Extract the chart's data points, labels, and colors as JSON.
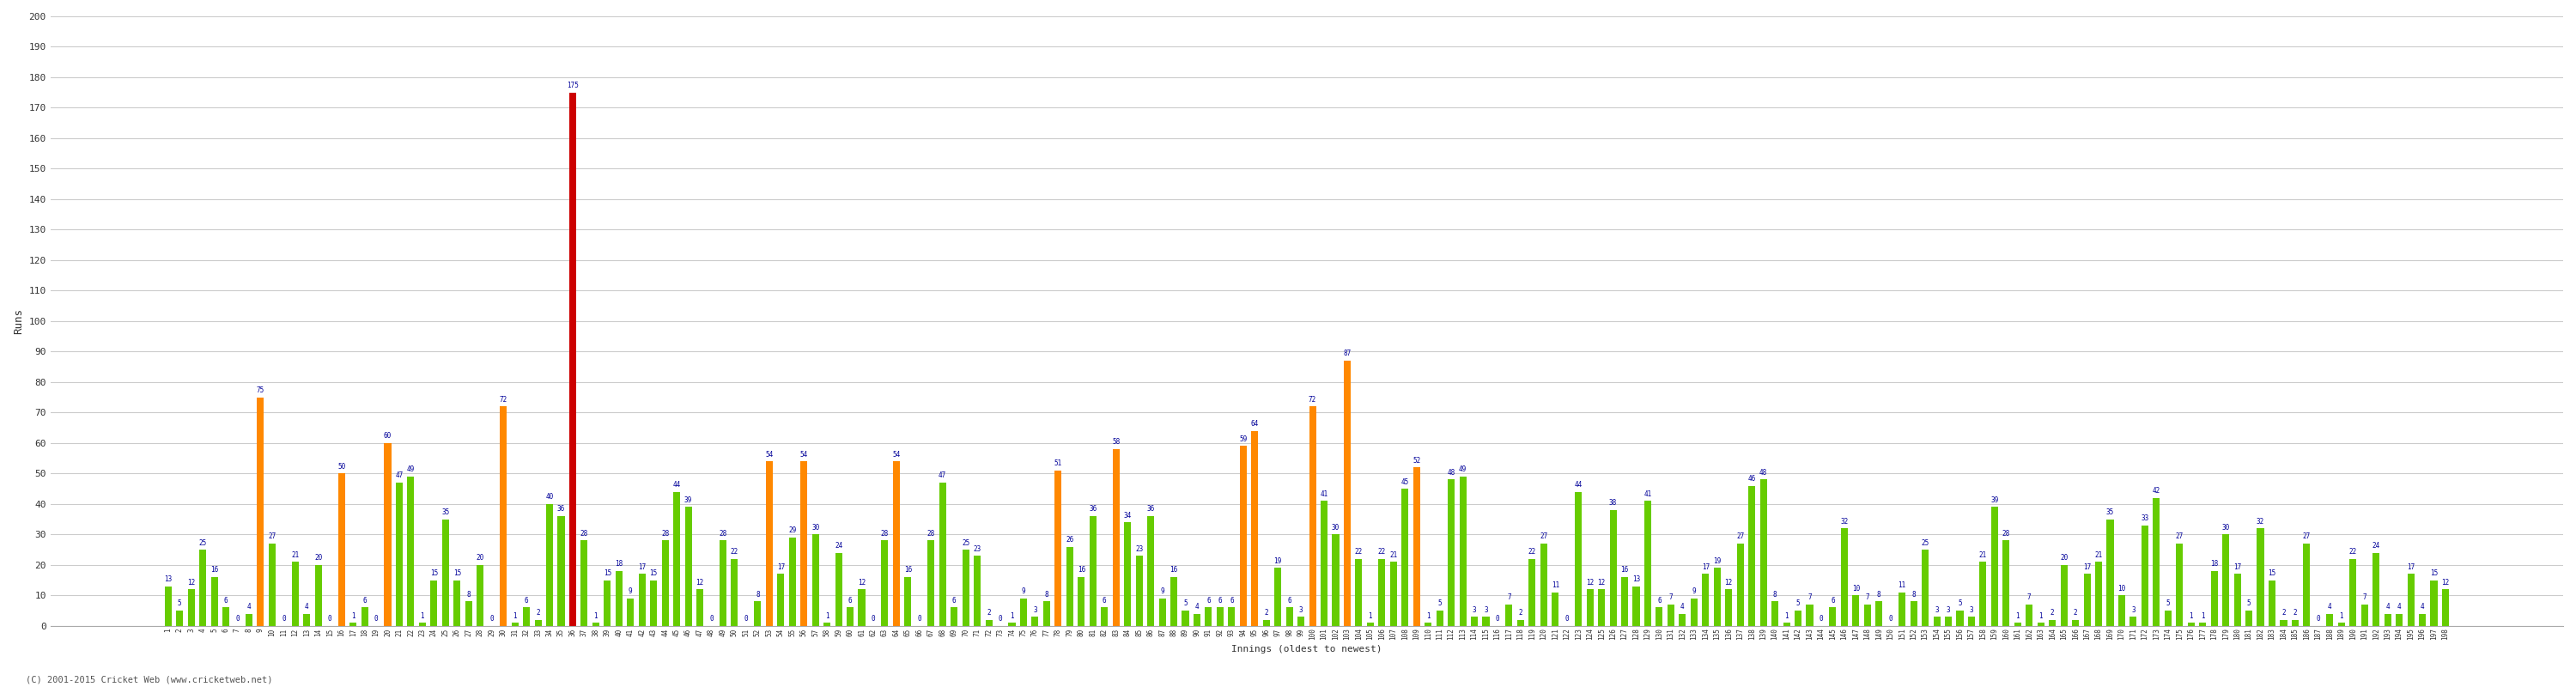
{
  "innings": [
    1,
    2,
    3,
    4,
    5,
    6,
    7,
    8,
    9,
    10,
    11,
    12,
    13,
    14,
    15,
    16,
    17,
    18,
    19,
    20,
    21,
    22,
    23,
    24,
    25,
    26,
    27,
    28,
    29,
    30,
    31,
    32,
    33,
    34,
    35,
    36,
    37,
    38,
    39,
    40,
    41,
    42,
    43,
    44,
    45,
    46,
    47,
    48,
    49,
    50,
    51,
    52,
    53,
    54,
    55,
    56,
    57,
    58,
    59,
    60,
    61,
    62,
    63,
    64,
    65,
    66,
    67,
    68,
    69,
    70,
    71,
    72,
    73,
    74,
    75,
    76,
    77,
    78,
    79,
    80,
    81,
    82,
    83,
    84,
    85,
    86,
    87,
    88,
    89,
    90,
    91,
    92,
    93,
    94,
    95,
    96,
    97,
    98,
    99,
    100,
    101,
    102,
    103,
    104,
    105,
    106,
    107,
    108,
    109,
    110,
    111,
    112,
    113,
    114,
    115,
    116,
    117,
    118,
    119,
    120,
    121,
    122,
    123,
    124,
    125,
    126,
    127,
    128,
    129,
    130,
    131,
    132,
    133,
    134,
    135,
    136,
    137,
    138,
    139,
    140,
    141,
    142,
    143,
    144,
    145,
    146,
    147,
    148,
    149,
    150,
    151,
    152,
    153,
    154,
    155,
    156,
    157,
    158,
    159,
    160,
    161,
    162,
    163,
    164,
    165,
    166,
    167,
    168,
    169,
    170,
    171,
    172,
    173,
    174,
    175,
    176,
    177,
    178,
    179,
    180,
    181,
    182,
    183,
    184,
    185,
    186,
    187,
    188,
    189,
    190,
    191,
    192,
    193,
    194,
    195,
    196,
    197,
    198
  ],
  "scores": [
    13,
    5,
    12,
    25,
    16,
    6,
    0,
    4,
    75,
    27,
    0,
    21,
    4,
    20,
    0,
    50,
    1,
    6,
    0,
    60,
    47,
    49,
    1,
    15,
    35,
    15,
    8,
    20,
    0,
    72,
    1,
    6,
    2,
    40,
    36,
    175,
    28,
    1,
    15,
    18,
    9,
    17,
    15,
    28,
    44,
    39,
    12,
    0,
    28,
    22,
    0,
    8,
    54,
    17,
    29,
    54,
    30,
    1,
    24,
    6,
    12,
    0,
    28,
    54,
    16,
    0,
    28,
    47,
    6,
    25,
    23,
    2,
    0,
    1,
    9,
    3,
    8,
    51,
    26,
    16,
    36,
    6,
    58,
    34,
    23,
    36,
    9,
    16,
    5,
    4,
    6,
    6,
    6,
    59,
    64,
    2,
    19,
    6,
    3,
    72,
    41,
    30,
    87,
    22,
    1,
    22,
    21,
    45,
    52,
    1,
    5,
    48,
    49,
    3,
    3,
    0,
    7,
    2,
    22,
    27,
    11,
    0,
    44,
    12,
    12,
    38,
    16,
    13,
    41,
    6,
    7,
    4,
    9,
    17,
    19,
    12,
    27,
    46,
    48,
    8,
    1,
    5,
    7,
    0,
    6,
    32,
    10,
    7,
    8,
    0,
    11,
    8,
    25,
    3,
    3,
    5,
    3,
    21,
    39,
    28,
    1,
    7,
    1,
    2,
    20,
    2,
    17,
    21,
    35,
    10,
    3,
    33,
    42,
    5,
    27,
    1,
    1,
    18,
    30,
    17,
    5,
    32,
    15,
    2,
    2,
    27,
    0,
    4,
    1,
    22,
    7,
    24,
    4,
    4,
    17,
    4,
    15,
    12
  ],
  "ylabel": "Runs",
  "xlabel": "Innings (oldest to newest)",
  "ylim": [
    0,
    200
  ],
  "yticks": [
    0,
    10,
    20,
    30,
    40,
    50,
    60,
    70,
    80,
    90,
    100,
    110,
    120,
    130,
    140,
    150,
    160,
    170,
    180,
    190,
    200
  ],
  "bg_color": "#ffffff",
  "grid_color": "#cccccc",
  "bar_color_normal": "#66cc00",
  "bar_color_fifty": "#ff8800",
  "bar_color_hundred": "#cc0000",
  "label_color": "#000099",
  "copyright": "(C) 2001-2015 Cricket Web (www.cricketweb.net)"
}
